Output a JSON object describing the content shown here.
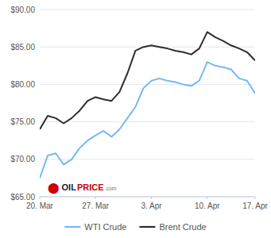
{
  "chart_data": {
    "type": "line",
    "x": [
      0,
      1,
      2,
      3,
      4,
      5,
      6,
      7,
      8,
      9,
      10,
      11,
      12,
      13,
      14,
      15,
      16,
      17,
      18,
      19,
      20,
      21,
      22,
      23,
      24,
      25,
      26,
      27
    ],
    "series": [
      {
        "name": "WTI Crude",
        "color": "#74b9f5",
        "values": [
          67.5,
          70.5,
          70.8,
          69.3,
          70.0,
          71.5,
          72.5,
          73.2,
          73.8,
          73.0,
          74.0,
          75.5,
          77.0,
          79.5,
          80.5,
          80.8,
          80.5,
          80.3,
          80.0,
          79.8,
          80.5,
          83.0,
          82.5,
          82.3,
          82.0,
          80.8,
          80.5,
          78.8
        ]
      },
      {
        "name": "Brent Crude",
        "color": "#2e2e2e",
        "values": [
          74.0,
          75.8,
          75.5,
          74.8,
          75.5,
          76.5,
          77.8,
          78.3,
          78.0,
          77.8,
          79.0,
          81.5,
          84.5,
          85.0,
          85.2,
          85.0,
          84.8,
          84.5,
          84.3,
          84.0,
          84.8,
          87.0,
          86.3,
          85.8,
          85.2,
          84.8,
          84.3,
          83.2
        ]
      }
    ],
    "xlim": [
      0,
      27
    ],
    "xticks": [
      {
        "value": 0,
        "label": "20. Mar"
      },
      {
        "value": 7,
        "label": "27. Mar"
      },
      {
        "value": 14,
        "label": "3. Apr"
      },
      {
        "value": 21,
        "label": "10. Apr"
      },
      {
        "value": 27,
        "label": "17. Apr"
      }
    ],
    "ylim": [
      65,
      90
    ],
    "yticks": [
      {
        "value": 65,
        "label": "$65.00"
      },
      {
        "value": 70,
        "label": "$70.00"
      },
      {
        "value": 75,
        "label": "$75.00"
      },
      {
        "value": 80,
        "label": "$80.00"
      },
      {
        "value": 85,
        "label": "$85.00"
      },
      {
        "value": 90,
        "label": "$90.00"
      }
    ],
    "grid": true,
    "legend": "bottom",
    "annotations": [
      {
        "text": "⬤",
        "color": "#cc0000"
      },
      {
        "text": "OIL",
        "color": "#1a1a3a"
      },
      {
        "text": "PRICE",
        "color": "#cc0000"
      },
      {
        "text": ".com",
        "color": "#777777"
      }
    ]
  }
}
